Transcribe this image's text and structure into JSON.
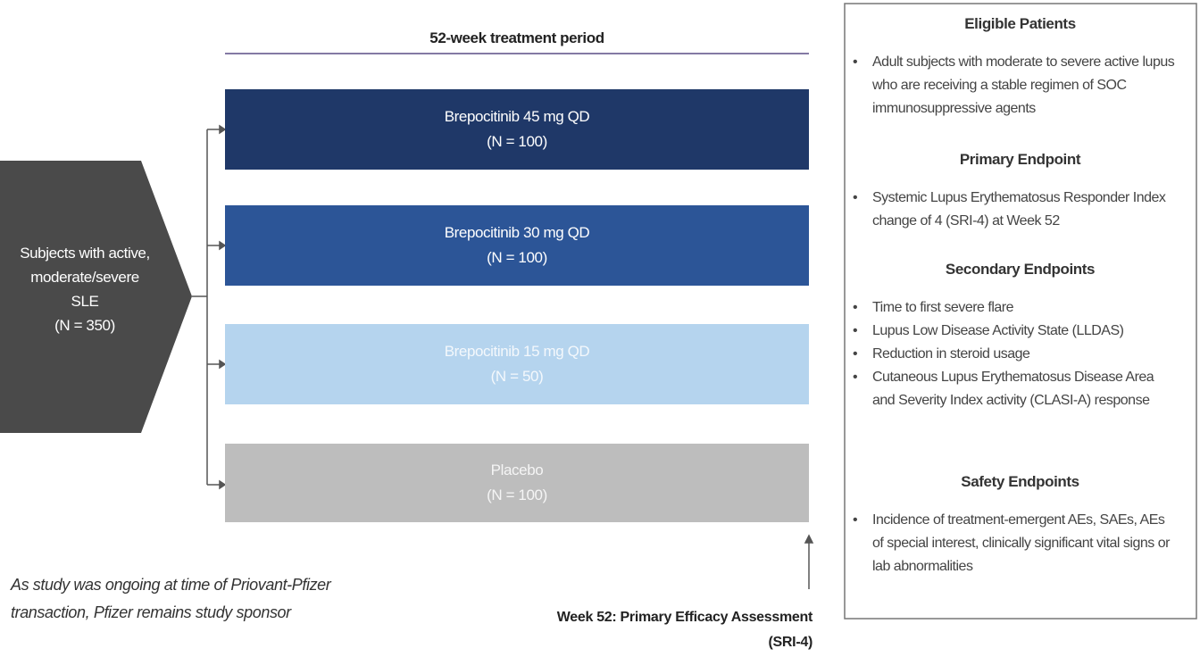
{
  "period_label": "52-week treatment period",
  "population": {
    "lines": [
      "Subjects with active,",
      "moderate/severe",
      "SLE",
      "(N = 350)"
    ]
  },
  "arms": [
    {
      "name": "Brepocitinib 45 mg QD",
      "n": "(N = 100)"
    },
    {
      "name": "Brepocitinib 30 mg QD",
      "n": "(N = 100)"
    },
    {
      "name": "Brepocitinib 15 mg QD",
      "n": "(N = 50)"
    },
    {
      "name": "Placebo",
      "n": "(N = 100)"
    }
  ],
  "panel": {
    "sections": [
      {
        "title": "Eligible Patients",
        "bullets": [
          "Adult subjects with moderate to severe active lupus who are receiving a stable regimen of SOC immunosuppressive agents"
        ]
      },
      {
        "title": "Primary Endpoint",
        "bullets": [
          "Systemic Lupus Erythematosus Responder Index change of 4 (SRI-4) at Week 52"
        ]
      },
      {
        "title": "Secondary Endpoints",
        "bullets": [
          "Time to first severe flare",
          "Lupus Low Disease Activity State (LLDAS)",
          "Reduction in steroid usage",
          "Cutaneous Lupus Erythematosus Disease Area and Severity Index activity (CLASI-A) response"
        ]
      },
      {
        "title": "Safety Endpoints",
        "bullets": [
          "Incidence of treatment-emergent AEs, SAEs, AEs of special interest, clinically significant vital signs or lab abnormalities"
        ]
      }
    ]
  },
  "note": {
    "lines": [
      "As study was ongoing at time of Priovant-Pfizer",
      "transaction, Pfizer remains study sponsor"
    ]
  },
  "assessment": {
    "lines": [
      "Week 52: Primary Efficacy Assessment",
      "(SRI-4)"
    ]
  }
}
